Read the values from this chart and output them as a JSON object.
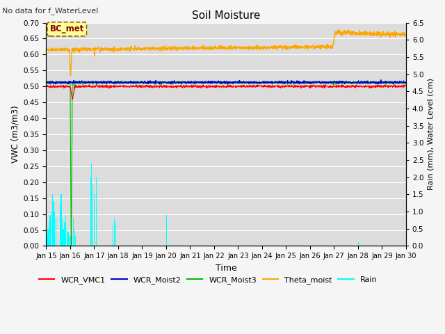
{
  "title": "Soil Moisture",
  "subtitle": "No data for f_WaterLevel",
  "xlabel": "Time",
  "ylabel_left": "VWC (m3/m3)",
  "ylabel_right": "Rain (mm), Water Level (cm)",
  "ylim_left": [
    0.0,
    0.7
  ],
  "ylim_right": [
    0.0,
    6.5
  ],
  "yticks_left": [
    0.0,
    0.05,
    0.1,
    0.15,
    0.2,
    0.25,
    0.3,
    0.35,
    0.4,
    0.45,
    0.5,
    0.55,
    0.6,
    0.65,
    0.7
  ],
  "yticks_right": [
    0.0,
    0.5,
    1.0,
    1.5,
    2.0,
    2.5,
    3.0,
    3.5,
    4.0,
    4.5,
    5.0,
    5.5,
    6.0,
    6.5
  ],
  "xtick_labels": [
    "Jan 15",
    "Jan 16",
    "Jan 17",
    "Jan 18",
    "Jan 19",
    "Jan 20",
    "Jan 21",
    "Jan 22",
    "Jan 23",
    "Jan 24",
    "Jan 25",
    "Jan 26",
    "Jan 27",
    "Jan 28",
    "Jan 29",
    "Jan 30"
  ],
  "legend_labels": [
    "WCR_VMC1",
    "WCR_Moist2",
    "WCR_Moist3",
    "Theta_moist",
    "Rain"
  ],
  "legend_colors": [
    "#ff0000",
    "#0000ff",
    "#00bb00",
    "#ffaa00",
    "#00ffff"
  ],
  "annotation_text": "BC_met",
  "plot_bg": "#dcdcdc",
  "fig_bg": "#f5f5f5",
  "grid_color": "#ffffff"
}
